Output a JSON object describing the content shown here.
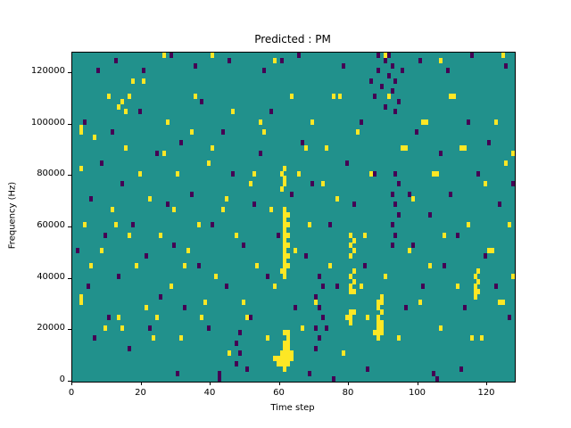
{
  "chart_data": {
    "type": "heatmap",
    "title": "Predicted : PM",
    "xlabel": "Time step",
    "ylabel": "Frequency (Hz)",
    "xlim": [
      0,
      128
    ],
    "ylim": [
      0,
      128000
    ],
    "x_ticks": [
      0,
      20,
      40,
      60,
      80,
      100,
      120
    ],
    "y_ticks": [
      0,
      20000,
      40000,
      60000,
      80000,
      100000,
      120000
    ],
    "grid": {
      "cols": 128,
      "rows": 64,
      "hz_per_row": 2000,
      "gridlines": false
    },
    "legend": "none",
    "colors": {
      "background": "#21918c",
      "high": "#fde725",
      "low": "#440154",
      "axes": "#000000"
    },
    "yellow_cells": [
      [
        58,
        4
      ],
      [
        59,
        3
      ],
      [
        59,
        4
      ],
      [
        60,
        3
      ],
      [
        60,
        4
      ],
      [
        60,
        5
      ],
      [
        61,
        2
      ],
      [
        61,
        3
      ],
      [
        61,
        4
      ],
      [
        61,
        5
      ],
      [
        61,
        6
      ],
      [
        61,
        7
      ],
      [
        62,
        3
      ],
      [
        62,
        4
      ],
      [
        62,
        5
      ],
      [
        62,
        6
      ],
      [
        62,
        7
      ],
      [
        62,
        8
      ],
      [
        63,
        4
      ],
      [
        63,
        5
      ],
      [
        61,
        9
      ],
      [
        62,
        9
      ],
      [
        60,
        21
      ],
      [
        61,
        20
      ],
      [
        61,
        21
      ],
      [
        61,
        22
      ],
      [
        62,
        22
      ],
      [
        61,
        23
      ],
      [
        61,
        24
      ],
      [
        62,
        24
      ],
      [
        61,
        25
      ],
      [
        61,
        26
      ],
      [
        62,
        26
      ],
      [
        61,
        27
      ],
      [
        61,
        28
      ],
      [
        62,
        28
      ],
      [
        61,
        29
      ],
      [
        61,
        30
      ],
      [
        62,
        30
      ],
      [
        61,
        31
      ],
      [
        61,
        32
      ],
      [
        62,
        32
      ],
      [
        61,
        33
      ],
      [
        60,
        37
      ],
      [
        61,
        38
      ],
      [
        61,
        39
      ],
      [
        60,
        40
      ],
      [
        61,
        41
      ],
      [
        79,
        12
      ],
      [
        80,
        11
      ],
      [
        80,
        12
      ],
      [
        80,
        13
      ],
      [
        81,
        13
      ],
      [
        80,
        17
      ],
      [
        81,
        17
      ],
      [
        80,
        18
      ],
      [
        81,
        19
      ],
      [
        80,
        20
      ],
      [
        81,
        21
      ],
      [
        80,
        24
      ],
      [
        81,
        25
      ],
      [
        80,
        26
      ],
      [
        81,
        27
      ],
      [
        80,
        28
      ],
      [
        87,
        9
      ],
      [
        88,
        8
      ],
      [
        88,
        9
      ],
      [
        88,
        10
      ],
      [
        89,
        9
      ],
      [
        89,
        10
      ],
      [
        88,
        11
      ],
      [
        89,
        11
      ],
      [
        88,
        12
      ],
      [
        89,
        13
      ],
      [
        88,
        14
      ],
      [
        89,
        15
      ],
      [
        88,
        15
      ],
      [
        89,
        16
      ],
      [
        116,
        16
      ],
      [
        116,
        17
      ],
      [
        117,
        17
      ],
      [
        116,
        18
      ],
      [
        117,
        19
      ],
      [
        116,
        20
      ],
      [
        117,
        21
      ],
      [
        13,
        53
      ],
      [
        14,
        54
      ],
      [
        15,
        52
      ],
      [
        16,
        55
      ],
      [
        26,
        63
      ],
      [
        40,
        63
      ],
      [
        58,
        62
      ],
      [
        90,
        63
      ],
      [
        106,
        62
      ],
      [
        124,
        63
      ],
      [
        2,
        15
      ],
      [
        2,
        16
      ],
      [
        2,
        41
      ],
      [
        2,
        48
      ],
      [
        2,
        49
      ],
      [
        3,
        30
      ],
      [
        5,
        22
      ],
      [
        6,
        47
      ],
      [
        8,
        25
      ],
      [
        9,
        10
      ],
      [
        10,
        55
      ],
      [
        11,
        33
      ],
      [
        12,
        30
      ],
      [
        13,
        12
      ],
      [
        14,
        10
      ],
      [
        15,
        45
      ],
      [
        16,
        28
      ],
      [
        17,
        58
      ],
      [
        18,
        22
      ],
      [
        19,
        40
      ],
      [
        20,
        58
      ],
      [
        21,
        14
      ],
      [
        22,
        35
      ],
      [
        23,
        8
      ],
      [
        24,
        12
      ],
      [
        25,
        28
      ],
      [
        26,
        44
      ],
      [
        27,
        50
      ],
      [
        28,
        18
      ],
      [
        29,
        33
      ],
      [
        30,
        40
      ],
      [
        31,
        8
      ],
      [
        32,
        22
      ],
      [
        33,
        25
      ],
      [
        34,
        48
      ],
      [
        35,
        55
      ],
      [
        36,
        30
      ],
      [
        37,
        12
      ],
      [
        38,
        15
      ],
      [
        39,
        42
      ],
      [
        40,
        45
      ],
      [
        41,
        20
      ],
      [
        43,
        33
      ],
      [
        44,
        35
      ],
      [
        45,
        5
      ],
      [
        46,
        52
      ],
      [
        47,
        28
      ],
      [
        49,
        15
      ],
      [
        50,
        12
      ],
      [
        51,
        38
      ],
      [
        52,
        40
      ],
      [
        53,
        22
      ],
      [
        54,
        50
      ],
      [
        55,
        48
      ],
      [
        56,
        8
      ],
      [
        57,
        33
      ],
      [
        58,
        18
      ],
      [
        63,
        55
      ],
      [
        64,
        25
      ],
      [
        65,
        40
      ],
      [
        66,
        10
      ],
      [
        67,
        45
      ],
      [
        68,
        30
      ],
      [
        69,
        50
      ],
      [
        70,
        15
      ],
      [
        72,
        38
      ],
      [
        73,
        45
      ],
      [
        74,
        22
      ],
      [
        75,
        55
      ],
      [
        76,
        35
      ],
      [
        77,
        55
      ],
      [
        78,
        5
      ],
      [
        82,
        48
      ],
      [
        83,
        18
      ],
      [
        84,
        28
      ],
      [
        85,
        12
      ],
      [
        86,
        40
      ],
      [
        90,
        20
      ],
      [
        91,
        55
      ],
      [
        92,
        30
      ],
      [
        94,
        8
      ],
      [
        95,
        45
      ],
      [
        96,
        45
      ],
      [
        97,
        25
      ],
      [
        98,
        35
      ],
      [
        100,
        15
      ],
      [
        101,
        50
      ],
      [
        102,
        50
      ],
      [
        103,
        22
      ],
      [
        104,
        40
      ],
      [
        105,
        40
      ],
      [
        106,
        10
      ],
      [
        107,
        28
      ],
      [
        109,
        55
      ],
      [
        110,
        55
      ],
      [
        111,
        18
      ],
      [
        112,
        45
      ],
      [
        113,
        45
      ],
      [
        114,
        30
      ],
      [
        115,
        8
      ],
      [
        118,
        8
      ],
      [
        119,
        38
      ],
      [
        120,
        25
      ],
      [
        121,
        25
      ],
      [
        122,
        50
      ],
      [
        123,
        15
      ],
      [
        124,
        15
      ],
      [
        125,
        42
      ],
      [
        126,
        30
      ],
      [
        127,
        20
      ],
      [
        127,
        44
      ]
    ],
    "purple_cells": [
      [
        86,
        58
      ],
      [
        87,
        55
      ],
      [
        88,
        60
      ],
      [
        89,
        57
      ],
      [
        90,
        62
      ],
      [
        90,
        53
      ],
      [
        91,
        59
      ],
      [
        92,
        56
      ],
      [
        92,
        61
      ],
      [
        93,
        52
      ],
      [
        93,
        58
      ],
      [
        94,
        54
      ],
      [
        95,
        60
      ],
      [
        88,
        63
      ],
      [
        91,
        63
      ],
      [
        92,
        26
      ],
      [
        93,
        28
      ],
      [
        92,
        30
      ],
      [
        94,
        32
      ],
      [
        93,
        34
      ],
      [
        92,
        36
      ],
      [
        94,
        38
      ],
      [
        93,
        40
      ],
      [
        70,
        6
      ],
      [
        71,
        8
      ],
      [
        70,
        10
      ],
      [
        72,
        12
      ],
      [
        71,
        14
      ],
      [
        70,
        16
      ],
      [
        72,
        18
      ],
      [
        71,
        20
      ],
      [
        47,
        3
      ],
      [
        48,
        5
      ],
      [
        47,
        7
      ],
      [
        48,
        9
      ],
      [
        42,
        0
      ],
      [
        42,
        1
      ],
      [
        30,
        1
      ],
      [
        50,
        2
      ],
      [
        68,
        1
      ],
      [
        75,
        0
      ],
      [
        85,
        2
      ],
      [
        104,
        1
      ],
      [
        105,
        0
      ],
      [
        112,
        2
      ],
      [
        12,
        62
      ],
      [
        20,
        60
      ],
      [
        28,
        63
      ],
      [
        35,
        61
      ],
      [
        45,
        62
      ],
      [
        55,
        60
      ],
      [
        65,
        63
      ],
      [
        78,
        61
      ],
      [
        100,
        62
      ],
      [
        108,
        60
      ],
      [
        115,
        63
      ],
      [
        125,
        61
      ],
      [
        7,
        60
      ],
      [
        60,
        62
      ],
      [
        1,
        25
      ],
      [
        3,
        50
      ],
      [
        4,
        18
      ],
      [
        5,
        35
      ],
      [
        6,
        8
      ],
      [
        8,
        42
      ],
      [
        9,
        28
      ],
      [
        10,
        12
      ],
      [
        11,
        48
      ],
      [
        13,
        20
      ],
      [
        14,
        38
      ],
      [
        16,
        6
      ],
      [
        17,
        30
      ],
      [
        19,
        52
      ],
      [
        21,
        24
      ],
      [
        22,
        10
      ],
      [
        24,
        44
      ],
      [
        25,
        16
      ],
      [
        27,
        34
      ],
      [
        29,
        26
      ],
      [
        31,
        46
      ],
      [
        32,
        14
      ],
      [
        34,
        36
      ],
      [
        36,
        22
      ],
      [
        37,
        54
      ],
      [
        39,
        10
      ],
      [
        40,
        30
      ],
      [
        43,
        48
      ],
      [
        44,
        18
      ],
      [
        46,
        40
      ],
      [
        49,
        26
      ],
      [
        51,
        12
      ],
      [
        52,
        34
      ],
      [
        54,
        44
      ],
      [
        56,
        20
      ],
      [
        57,
        52
      ],
      [
        59,
        28
      ],
      [
        63,
        36
      ],
      [
        64,
        14
      ],
      [
        66,
        46
      ],
      [
        67,
        24
      ],
      [
        69,
        38
      ],
      [
        73,
        10
      ],
      [
        74,
        30
      ],
      [
        76,
        18
      ],
      [
        79,
        42
      ],
      [
        81,
        34
      ],
      [
        83,
        50
      ],
      [
        84,
        22
      ],
      [
        87,
        40
      ],
      [
        96,
        14
      ],
      [
        97,
        36
      ],
      [
        98,
        26
      ],
      [
        99,
        48
      ],
      [
        101,
        18
      ],
      [
        103,
        32
      ],
      [
        106,
        44
      ],
      [
        107,
        22
      ],
      [
        109,
        36
      ],
      [
        111,
        28
      ],
      [
        113,
        14
      ],
      [
        114,
        50
      ],
      [
        117,
        40
      ],
      [
        119,
        24
      ],
      [
        120,
        46
      ],
      [
        122,
        18
      ],
      [
        123,
        34
      ],
      [
        126,
        12
      ],
      [
        127,
        38
      ]
    ]
  }
}
